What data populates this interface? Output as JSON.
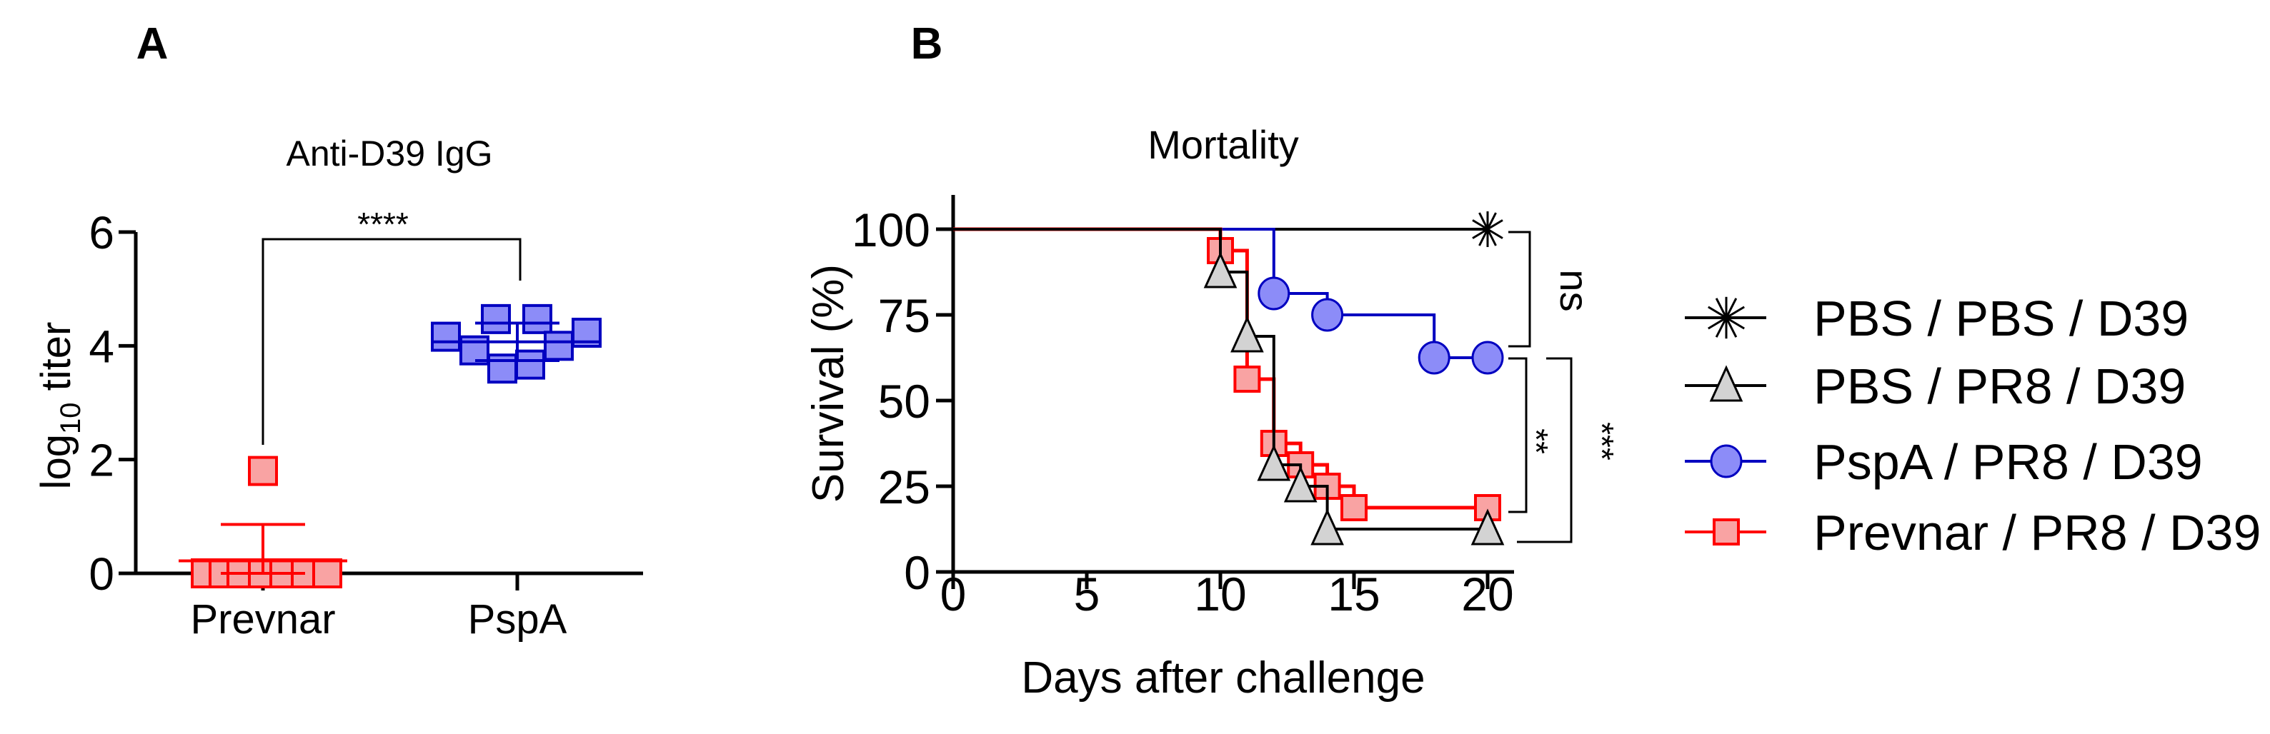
{
  "panel_labels": [
    "A",
    "B"
  ],
  "colors": {
    "axis": "#000000",
    "prevnar_stroke": "#ff0000",
    "prevnar_fill": "#f9a3a3",
    "pspa_stroke": "#0000c0",
    "pspa_fill": "#8c8cf8",
    "triangle_fill": "#d3d3d3"
  },
  "chart_data": [
    {
      "type": "scatter",
      "title": "Anti-D39 IgG",
      "ylabel_main": "log",
      "ylabel_sub": "10",
      "ylabel_tail": " titer",
      "xlabel": "",
      "ylim": [
        0,
        6
      ],
      "yticks": [
        0,
        2,
        4,
        6
      ],
      "categories": [
        "Prevnar",
        "PspA"
      ],
      "series": [
        {
          "name": "Prevnar",
          "values": [
            0,
            0,
            0,
            0,
            0,
            0,
            0,
            1.8
          ],
          "mean": 0.22,
          "sd": 0.64
        },
        {
          "name": "PspA",
          "values": [
            4.16,
            3.92,
            4.47,
            3.6,
            3.67,
            4.47,
            4.0,
            4.23
          ],
          "mean": 4.07,
          "sd": 0.33
        }
      ],
      "significance": {
        "groups": [
          "Prevnar",
          "PspA"
        ],
        "label": "****"
      }
    },
    {
      "type": "line",
      "subtype": "kaplan-meier",
      "title": "Mortality",
      "xlabel": "Days after challenge",
      "ylabel": "Survival (%)",
      "xlim": [
        0,
        21
      ],
      "ylim": [
        0,
        110
      ],
      "xticks": [
        0,
        5,
        10,
        15,
        20
      ],
      "yticks": [
        0,
        25,
        50,
        75,
        100
      ],
      "series": [
        {
          "name": "PBS / PBS / D39",
          "marker": "asterisk",
          "points": [
            [
              20,
              100
            ]
          ]
        },
        {
          "name": "PBS / PR8 / D39",
          "marker": "triangle",
          "points": [
            [
              10,
              87.5
            ],
            [
              11,
              68.75
            ],
            [
              12,
              31.25
            ],
            [
              13,
              25
            ],
            [
              14,
              12.5
            ],
            [
              20,
              12.5
            ]
          ]
        },
        {
          "name": "PspA / PR8 / D39",
          "marker": "circle",
          "points": [
            [
              12,
              81.25
            ],
            [
              14,
              75
            ],
            [
              18,
              62.5
            ],
            [
              20,
              62.5
            ]
          ]
        },
        {
          "name": "Prevnar / PR8 / D39",
          "marker": "square",
          "points": [
            [
              10,
              93.75
            ],
            [
              11,
              56.25
            ],
            [
              12,
              37.5
            ],
            [
              13,
              31.25
            ],
            [
              14,
              25
            ],
            [
              15,
              18.75
            ],
            [
              20,
              18.75
            ]
          ]
        }
      ],
      "legend": "right",
      "significance": [
        {
          "groups": [
            "PBS / PBS / D39",
            "PspA / PR8 / D39"
          ],
          "label": "ns"
        },
        {
          "groups": [
            "PspA / PR8 / D39",
            "Prevnar / PR8 / D39"
          ],
          "label": "**"
        },
        {
          "groups": [
            "PspA / PR8 / D39",
            "PBS / PR8 / D39"
          ],
          "label": "***"
        }
      ]
    }
  ]
}
